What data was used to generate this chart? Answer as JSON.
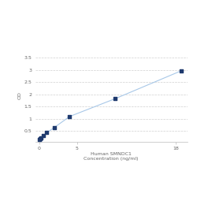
{
  "x_values": [
    0.063,
    0.125,
    0.25,
    0.5,
    1.0,
    2.0,
    4.0,
    10.0,
    18.75
  ],
  "y_values": [
    0.148,
    0.178,
    0.222,
    0.302,
    0.428,
    0.642,
    1.09,
    1.82,
    2.97
  ],
  "x_label_line1": "Human SMNDC1",
  "x_label_line2": "Concentration (ng/ml)",
  "y_label": "OD",
  "x_ticks": [
    0,
    5,
    18
  ],
  "x_tick_labels": [
    "0",
    "5",
    "18"
  ],
  "y_ticks": [
    0.5,
    1.0,
    1.5,
    2.0,
    2.5,
    3.0,
    3.5
  ],
  "y_tick_labels": [
    "0.5",
    "1",
    "1.5",
    "2",
    "2.5",
    "3",
    "3.5"
  ],
  "xlim": [
    -0.5,
    19.5
  ],
  "ylim": [
    0.05,
    3.85
  ],
  "line_color": "#a8c8e8",
  "marker_color": "#1f3a6e",
  "grid_color": "#d0d0d0",
  "background_color": "#ffffff",
  "label_fontsize": 4.5,
  "tick_fontsize": 4.5
}
